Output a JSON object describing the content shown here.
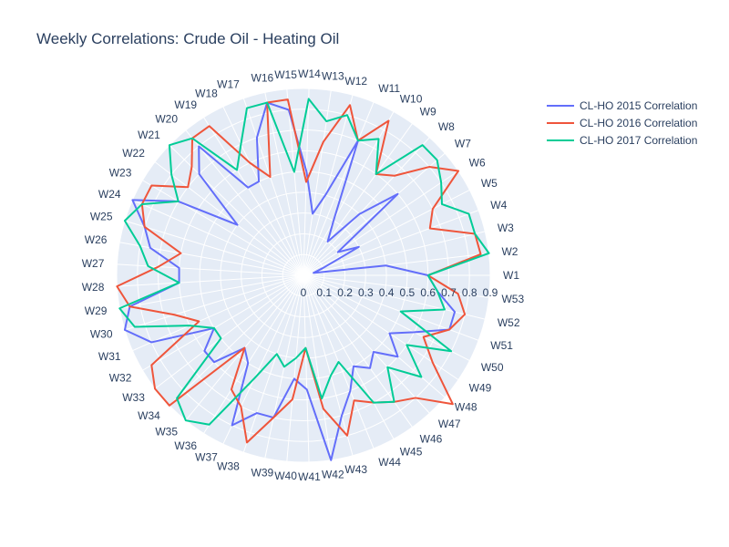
{
  "chart_data": {
    "type": "line",
    "subtype": "polar",
    "title": "Weekly Correlations: Crude Oil - Heating Oil",
    "theta": [
      "W1",
      "W2",
      "W3",
      "W4",
      "W5",
      "W6",
      "W7",
      "W8",
      "W9",
      "W10",
      "W11",
      "W12",
      "W13",
      "W14",
      "W15",
      "W16",
      "W17",
      "W18",
      "W19",
      "W20",
      "W21",
      "W22",
      "W23",
      "W24",
      "W25",
      "W26",
      "W27",
      "W28",
      "W29",
      "W30",
      "W31",
      "W32",
      "W33",
      "W34",
      "W35",
      "W36",
      "W37",
      "W38",
      "W39",
      "W40",
      "W41",
      "W42",
      "W43",
      "W44",
      "W45",
      "W46",
      "W47",
      "W48",
      "W49",
      "W50",
      "W51",
      "W52",
      "W53"
    ],
    "radial_ticks": [
      "0",
      "0.1",
      "0.2",
      "0.3",
      "0.4",
      "0.5",
      "0.6",
      "0.7",
      "0.8",
      "0.9"
    ],
    "radial_range": [
      0,
      0.9
    ],
    "direction": "counterclockwise",
    "grid": true,
    "legend_position": "top-right",
    "series": [
      {
        "name": "CL-HO 2015 Correlation",
        "color": "#636efa",
        "values": [
          0.6,
          0.4,
          0.05,
          0.1,
          0.3,
          0.2,
          0.6,
          0.4,
          0.2,
          0.3,
          0.7,
          0.4,
          0.3,
          0.5,
          0.8,
          0.85,
          0.7,
          0.5,
          0.5,
          0.8,
          0.7,
          0.4,
          0.7,
          0.9,
          0.8,
          0.75,
          0.6,
          0.6,
          0.85,
          0.9,
          0.8,
          0.5,
          0.6,
          0.6,
          0.45,
          0.5,
          0.8,
          0.7,
          0.7,
          0.5,
          0.55,
          0.9,
          0.7,
          0.6,
          0.5,
          0.55,
          0.5,
          0.6,
          0.5,
          0.6,
          0.75,
          0.75,
          0.65
        ]
      },
      {
        "name": "CL-HO 2016 Correlation",
        "color": "#ef553b",
        "values": [
          0.6,
          0.86,
          0.85,
          0.65,
          0.7,
          0.9,
          0.8,
          0.65,
          0.6,
          0.85,
          0.7,
          0.85,
          0.65,
          0.45,
          0.85,
          0.85,
          0.5,
          0.6,
          0.85,
          0.85,
          0.75,
          0.7,
          0.85,
          0.85,
          0.8,
          0.6,
          0.7,
          0.9,
          0.85,
          0.65,
          0.55,
          0.85,
          0.9,
          0.9,
          0.45,
          0.65,
          0.7,
          0.85,
          0.7,
          0.6,
          0.35,
          0.65,
          0.8,
          0.65,
          0.7,
          0.75,
          0.8,
          0.95,
          0.75,
          0.65,
          0.75,
          0.8,
          0.75
        ]
      },
      {
        "name": "CL-HO 2017 Correlation",
        "color": "#00cc96",
        "values": [
          0.6,
          0.9,
          0.85,
          0.85,
          0.75,
          0.8,
          0.85,
          0.85,
          0.6,
          0.75,
          0.7,
          0.8,
          0.75,
          0.85,
          0.5,
          0.85,
          0.85,
          0.7,
          0.6,
          0.85,
          0.9,
          0.8,
          0.7,
          0.85,
          0.9,
          0.8,
          0.75,
          0.6,
          0.9,
          0.85,
          0.6,
          0.5,
          0.5,
          0.85,
          0.9,
          0.85,
          0.55,
          0.4,
          0.45,
          0.4,
          0.35,
          0.6,
          0.5,
          0.45,
          0.7,
          0.75,
          0.6,
          0.75,
          0.6,
          0.8,
          0.5,
          0.7,
          0.65
        ]
      }
    ]
  }
}
